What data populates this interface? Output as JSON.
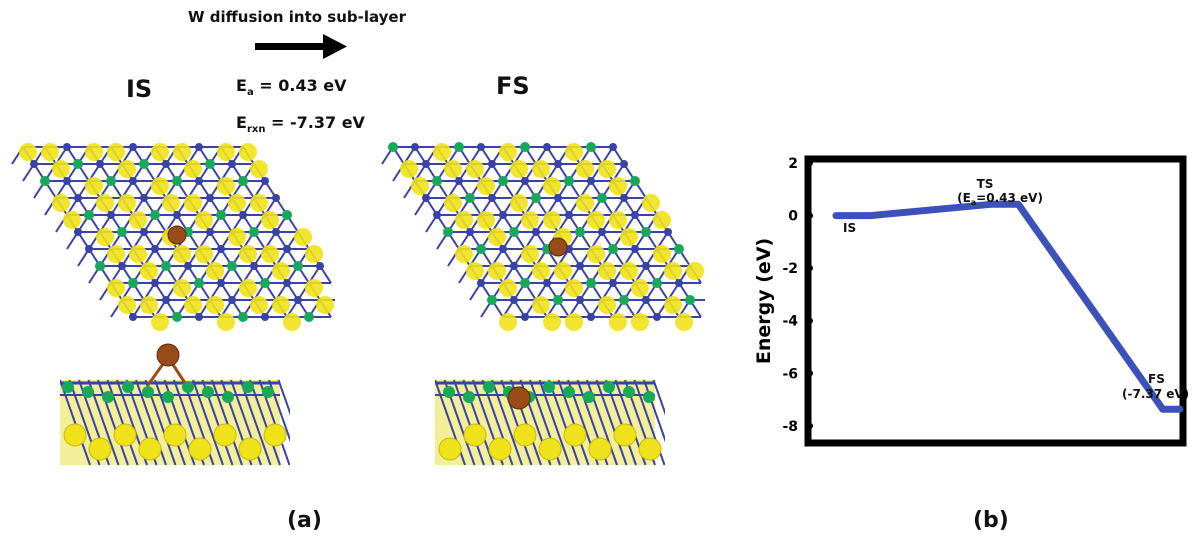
{
  "panel_a": {
    "arrow_text": "W diffusion into sub-layer",
    "is_label": "IS",
    "fs_label": "FS",
    "ea": {
      "symbol": "E",
      "sub": "a",
      "value": "= 0.43 eV"
    },
    "erxn": {
      "symbol": "E",
      "sub": "rxn",
      "value": "= -7.37 eV"
    },
    "caption": "(a)"
  },
  "panel_b": {
    "caption": "(b)",
    "ts_label": "TS",
    "ts_value": {
      "open": "(E",
      "sub": "a",
      "rest": "=0.43 eV)"
    },
    "is_label": "IS",
    "fs_label": "FS",
    "fs_value": "(-7.37 eV)"
  },
  "chart_data": {
    "type": "line",
    "title": "",
    "xlabel": "",
    "ylabel": "Energy (eV)",
    "ylim": [
      -8.5,
      2
    ],
    "yticks": [
      "2",
      "0",
      "-2",
      "-4",
      "-6",
      "-8"
    ],
    "grid": false,
    "series": [
      {
        "color": "#3d52b8",
        "x": [
          0,
          0.1,
          0.45,
          0.53,
          0.95,
          1.0
        ],
        "y": [
          0,
          0,
          0.43,
          0.43,
          -7.37,
          -7.37
        ]
      }
    ]
  },
  "colors": {
    "line": "#3d52b8",
    "atom_s": "#f0e21a",
    "atom_mo": "#3a42a6",
    "atom_se": "#17a85a",
    "atom_w": "#9a4b1a"
  }
}
